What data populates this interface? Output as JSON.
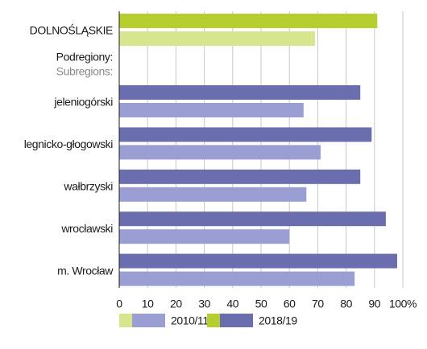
{
  "chart_data": {
    "type": "bar",
    "orientation": "horizontal",
    "categories": [
      "DOLNOŚLĄSKIE",
      "jeleniogórski",
      "legnicko-głogowski",
      "wałbrzyski",
      "wrocławski",
      "m. Wrocław"
    ],
    "group_label": [
      "Podregiony:",
      "Subregions:"
    ],
    "series": [
      {
        "name": "2018/19",
        "colors": [
          "#b6cf2e",
          "#6a6eaf",
          "#6a6eaf",
          "#6a6eaf",
          "#6a6eaf",
          "#6a6eaf"
        ],
        "values": [
          91,
          85,
          89,
          85,
          94,
          98
        ]
      },
      {
        "name": "2010/11",
        "colors": [
          "#d6e68e",
          "#9a9ed2",
          "#9a9ed2",
          "#9a9ed2",
          "#9a9ed2",
          "#9a9ed2"
        ],
        "values": [
          69,
          65,
          71,
          66,
          60,
          83
        ]
      }
    ],
    "xlim": [
      0,
      100
    ],
    "xticks": [
      0,
      10,
      20,
      30,
      40,
      50,
      60,
      70,
      80,
      90,
      {
        "value": 100,
        "label": "100%"
      }
    ],
    "grid": true
  }
}
